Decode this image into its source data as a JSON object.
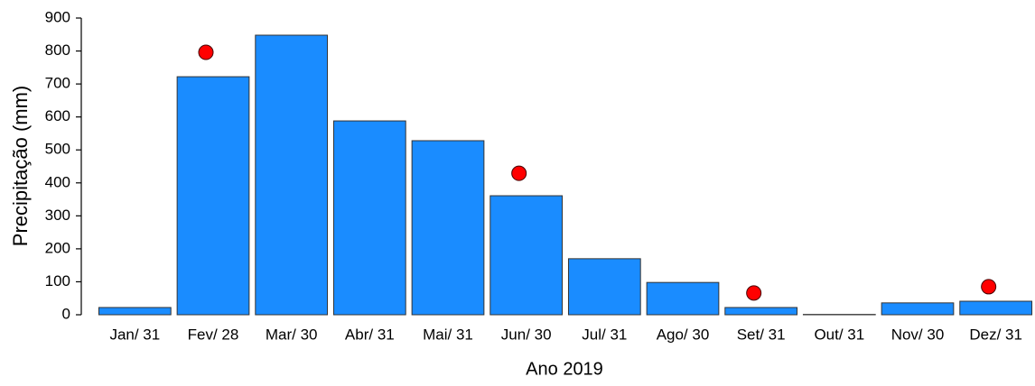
{
  "chart_data": {
    "type": "bar",
    "x_label": "Ano 2019",
    "y_label": "Precipitação (mm)",
    "categories": [
      "Jan/ 31",
      "Fev/ 28",
      "Mar/ 30",
      "Abr/ 31",
      "Mai/ 31",
      "Jun/ 30",
      "Jul/ 31",
      "Ago/ 30",
      "Set/ 31",
      "Out/ 31",
      "Nov/ 30",
      "Dez/ 31"
    ],
    "series": [
      {
        "type": "bar",
        "color": "#1a8cff",
        "values": [
          22,
          722,
          848,
          588,
          528,
          361,
          170,
          98,
          22,
          1,
          36,
          41
        ]
      },
      {
        "type": "scatter",
        "color": "#ff0000",
        "values": [
          null,
          796,
          null,
          null,
          null,
          429,
          null,
          null,
          66,
          null,
          null,
          85
        ]
      }
    ],
    "ylim": [
      0,
      900
    ],
    "yticks": [
      0,
      100,
      200,
      300,
      400,
      500,
      600,
      700,
      800,
      900
    ],
    "grid": false
  }
}
